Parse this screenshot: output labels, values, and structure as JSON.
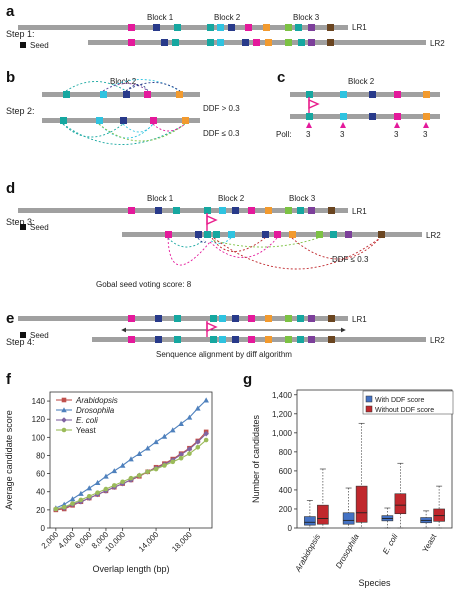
{
  "figure": {
    "panel_labels": [
      "a",
      "b",
      "c",
      "d",
      "e",
      "f",
      "g"
    ],
    "panel_a": {
      "step": "Step 1:",
      "seed_legend": "Seed",
      "reads": [
        "LR1",
        "LR2"
      ],
      "blocks": [
        "Block 1",
        "Block 2",
        "Block 3"
      ]
    },
    "panel_b": {
      "step": "Step 2:",
      "block": "Block 2",
      "ddf_high": "DDF > 0.3",
      "ddf_low": "DDF ≤ 0.3"
    },
    "panel_c": {
      "block": "Block 2",
      "poll_label": "Poll:",
      "poll_values": [
        "3",
        "3",
        "3",
        "3"
      ]
    },
    "panel_d": {
      "step": "Step 3:",
      "seed_legend": "Seed",
      "reads": [
        "LR1",
        "LR2"
      ],
      "blocks": [
        "Block 1",
        "Block 2",
        "Block 3"
      ],
      "ddf_low": "DDF ≤ 0.3",
      "score_text": "Gobal seed voting score: 8"
    },
    "panel_e": {
      "step": "Step 4:",
      "seed_legend": "Seed",
      "reads": [
        "LR1",
        "LR2"
      ],
      "caption": "Senquence alignment by diff algorithm"
    },
    "colors": {
      "magenta": "#e4199b",
      "navy": "#283a8a",
      "teal": "#16a7a0",
      "cyan": "#2fc3e0",
      "orange": "#f29a2e",
      "green": "#7cc243",
      "purple": "#7c3f9a",
      "brown": "#6a4520",
      "read_gray": "#a0a0a0",
      "flag": "#e91e8c"
    }
  },
  "chart_data": [
    {
      "type": "line",
      "panel": "f",
      "xlabel": "Overlap length (bp)",
      "ylabel": "Average candidate score",
      "x": [
        2000,
        3000,
        4000,
        5000,
        6000,
        7000,
        8000,
        9000,
        10000,
        11000,
        12000,
        13000,
        14000,
        15000,
        16000,
        17000,
        18000,
        19000,
        20000
      ],
      "xticks": [
        "2,000",
        "4,000",
        "6,000",
        "8,000",
        "10,000",
        "14,000",
        "18,000"
      ],
      "xtick_values": [
        2000,
        4000,
        6000,
        8000,
        10000,
        14000,
        18000
      ],
      "yticks": [
        "0",
        "20",
        "40",
        "60",
        "80",
        "100",
        "120",
        "140"
      ],
      "ylim": [
        0,
        150
      ],
      "xlim": [
        1300,
        20700
      ],
      "series": [
        {
          "name": "Arabidopsis",
          "italic": true,
          "color": "#c0504d",
          "marker": "square",
          "values": [
            20,
            21,
            25,
            29,
            33,
            37,
            41,
            45,
            49,
            53,
            57,
            62,
            67,
            71,
            76,
            82,
            88,
            96,
            106
          ]
        },
        {
          "name": "Drosophila",
          "italic": true,
          "color": "#4f81bd",
          "marker": "triangle",
          "values": [
            22,
            26,
            32,
            38,
            44,
            50,
            57,
            63,
            69,
            76,
            82,
            88,
            95,
            101,
            108,
            115,
            122,
            132,
            141
          ]
        },
        {
          "name": "E. coli",
          "italic": true,
          "color": "#8064a2",
          "marker": "diamond",
          "values": [
            21,
            22,
            26,
            29,
            33,
            37,
            41,
            45,
            49,
            53,
            58,
            62,
            66,
            70,
            75,
            81,
            87,
            95,
            104
          ]
        },
        {
          "name": "Yeast",
          "italic": false,
          "color": "#9bbb59",
          "marker": "circle",
          "values": [
            21,
            23,
            27,
            31,
            35,
            39,
            43,
            47,
            51,
            55,
            58,
            62,
            65,
            69,
            73,
            77,
            82,
            89,
            97
          ]
        }
      ]
    },
    {
      "type": "box",
      "panel": "g",
      "xlabel": "Species",
      "ylabel": "Number of candidates",
      "categories": [
        "Arabidopsis",
        "Drosophila",
        "E. coli",
        "Yeast"
      ],
      "yticks": [
        "0",
        "200",
        "400",
        "600",
        "800",
        "1,000",
        "1,200",
        "1,400"
      ],
      "ylim": [
        0,
        1450
      ],
      "series": [
        {
          "name": "With DDF score",
          "color": "#4472c4",
          "boxes": [
            {
              "min": 0,
              "q1": 30,
              "median": 60,
              "q3": 120,
              "max": 290
            },
            {
              "min": 0,
              "q1": 40,
              "median": 80,
              "q3": 160,
              "max": 420
            },
            {
              "min": 0,
              "q1": 75,
              "median": 100,
              "q3": 130,
              "max": 210
            },
            {
              "min": 0,
              "q1": 55,
              "median": 80,
              "q3": 110,
              "max": 180
            }
          ]
        },
        {
          "name": "Without DDF score",
          "color": "#c0282d",
          "boxes": [
            {
              "min": 0,
              "q1": 40,
              "median": 100,
              "q3": 240,
              "max": 620
            },
            {
              "min": 0,
              "q1": 60,
              "median": 160,
              "q3": 440,
              "max": 1100
            },
            {
              "min": 0,
              "q1": 150,
              "median": 240,
              "q3": 360,
              "max": 680
            },
            {
              "min": 0,
              "q1": 70,
              "median": 130,
              "q3": 200,
              "max": 440
            }
          ]
        }
      ]
    }
  ]
}
